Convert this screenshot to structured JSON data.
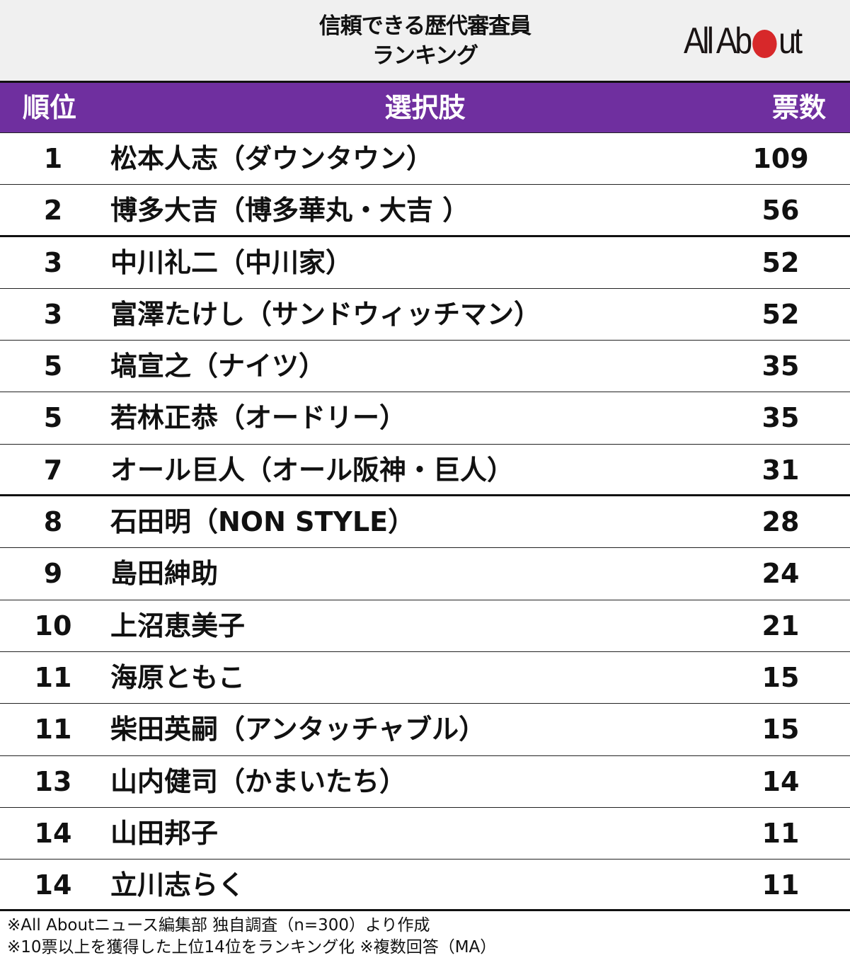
{
  "title": {
    "line1": "信頼できる歴代審査員",
    "line2": "ランキング"
  },
  "logo": {
    "text_before": "All Ab",
    "dot_color": "#d7282a",
    "text_after": "ut",
    "full_text": "All About"
  },
  "colors": {
    "header_bg": "#6f2f9f",
    "header_text": "#ffffff",
    "title_bg": "#f0f0f0",
    "accent_red": "#d7282a"
  },
  "table": {
    "columns": [
      "順位",
      "選択肢",
      "票数"
    ],
    "rows": [
      {
        "rank": "1",
        "name": "松本人志（ダウンタウン）",
        "votes": "109"
      },
      {
        "rank": "2",
        "name": "博多大吉（博多華丸・大吉 ）",
        "votes": "56"
      },
      {
        "rank": "3",
        "name": "中川礼二（中川家）",
        "votes": "52"
      },
      {
        "rank": "3",
        "name": "富澤たけし（サンドウィッチマン）",
        "votes": "52"
      },
      {
        "rank": "5",
        "name": "塙宣之（ナイツ）",
        "votes": "35"
      },
      {
        "rank": "5",
        "name": "若林正恭（オードリー）",
        "votes": "35"
      },
      {
        "rank": "7",
        "name": "オール巨人（オール阪神・巨人）",
        "votes": "31"
      },
      {
        "rank": "8",
        "name": "石田明（NON STYLE）",
        "votes": "28"
      },
      {
        "rank": "9",
        "name": "島田紳助",
        "votes": "24"
      },
      {
        "rank": "10",
        "name": "上沼恵美子",
        "votes": "21"
      },
      {
        "rank": "11",
        "name": "海原ともこ",
        "votes": "15"
      },
      {
        "rank": "11",
        "name": "柴田英嗣（アンタッチャブル）",
        "votes": "15"
      },
      {
        "rank": "13",
        "name": "山内健司（かまいたち）",
        "votes": "14"
      },
      {
        "rank": "14",
        "name": "山田邦子",
        "votes": "11"
      },
      {
        "rank": "14",
        "name": "立川志らく",
        "votes": "11"
      }
    ]
  },
  "notes": [
    "※All Aboutニュース編集部 独自調査（n=300）より作成",
    "※10票以上を獲得した上位14位をランキング化 ※複数回答（MA）"
  ]
}
